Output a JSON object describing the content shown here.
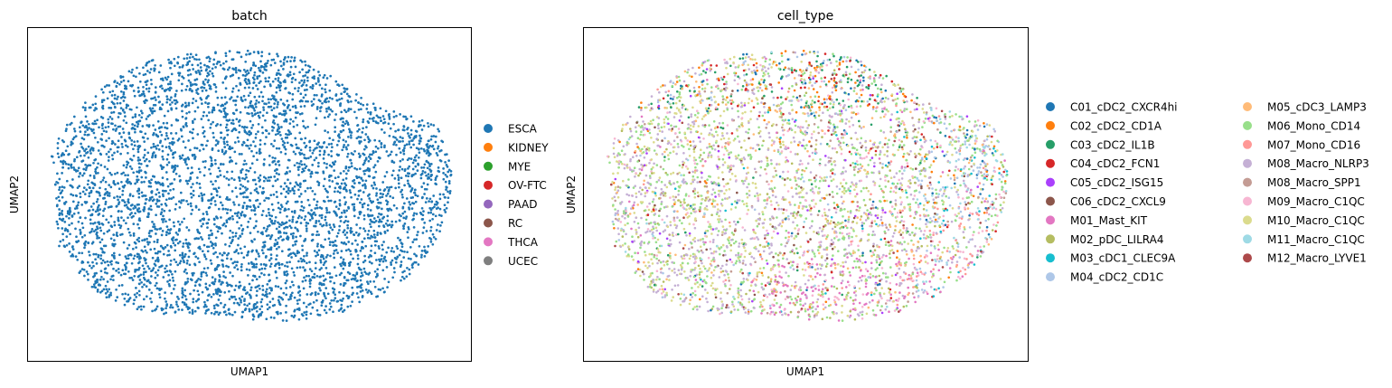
{
  "chart_data": [
    {
      "type": "scatter",
      "title": "batch",
      "xlabel": "UMAP1",
      "ylabel": "UMAP2",
      "ticks": "none",
      "grid": false,
      "legend_placement": "right, outside plot",
      "legend": [
        {
          "label": "ESCA",
          "color": "#1f77b4"
        },
        {
          "label": "KIDNEY",
          "color": "#ff7f0e"
        },
        {
          "label": "MYE",
          "color": "#2ca02c"
        },
        {
          "label": "OV-FTC",
          "color": "#d62728"
        },
        {
          "label": "PAAD",
          "color": "#9467bd"
        },
        {
          "label": "RC",
          "color": "#8c564b"
        },
        {
          "label": "THCA",
          "color": "#e377c2"
        },
        {
          "label": "UCEC",
          "color": "#7f7f7f"
        }
      ],
      "point_color": "#1f77b4",
      "approx_point_count": 4500
    },
    {
      "type": "scatter",
      "title": "cell_type",
      "xlabel": "UMAP1",
      "ylabel": "UMAP2",
      "ticks": "none",
      "grid": false,
      "legend_placement": "right, outside plot, two columns",
      "legend": [
        {
          "label": "C01_cDC2_CXCR4hi",
          "color": "#1f77b4"
        },
        {
          "label": "C02_cDC2_CD1A",
          "color": "#ff7f0e"
        },
        {
          "label": "C03_cDC2_IL1B",
          "color": "#279e68"
        },
        {
          "label": "C04_cDC2_FCN1",
          "color": "#d62728"
        },
        {
          "label": "C05_cDC2_ISG15",
          "color": "#aa40fc"
        },
        {
          "label": "C06_cDC2_CXCL9",
          "color": "#8c564b"
        },
        {
          "label": "M01_Mast_KIT",
          "color": "#e377c2"
        },
        {
          "label": "M02_pDC_LILRA4",
          "color": "#b5bd61"
        },
        {
          "label": "M03_cDC1_CLEC9A",
          "color": "#17becf"
        },
        {
          "label": "M04_cDC2_CD1C",
          "color": "#aec7e8"
        },
        {
          "label": "M05_cDC3_LAMP3",
          "color": "#ffbb78"
        },
        {
          "label": "M06_Mono_CD14",
          "color": "#98df8a"
        },
        {
          "label": "M07_Mono_CD16",
          "color": "#ff9896"
        },
        {
          "label": "M08_Macro_NLRP3",
          "color": "#c5b0d5"
        },
        {
          "label": "M08_Macro_SPP1",
          "color": "#c49c94"
        },
        {
          "label": "M09_Macro_C1QC",
          "color": "#f7b6d2"
        },
        {
          "label": "M10_Macro_C1QC",
          "color": "#dbdb8d"
        },
        {
          "label": "M11_Macro_C1QC",
          "color": "#9edae5"
        },
        {
          "label": "M12_Macro_LYVE1",
          "color": "#ad494a"
        }
      ],
      "approx_point_count": 4500
    }
  ]
}
